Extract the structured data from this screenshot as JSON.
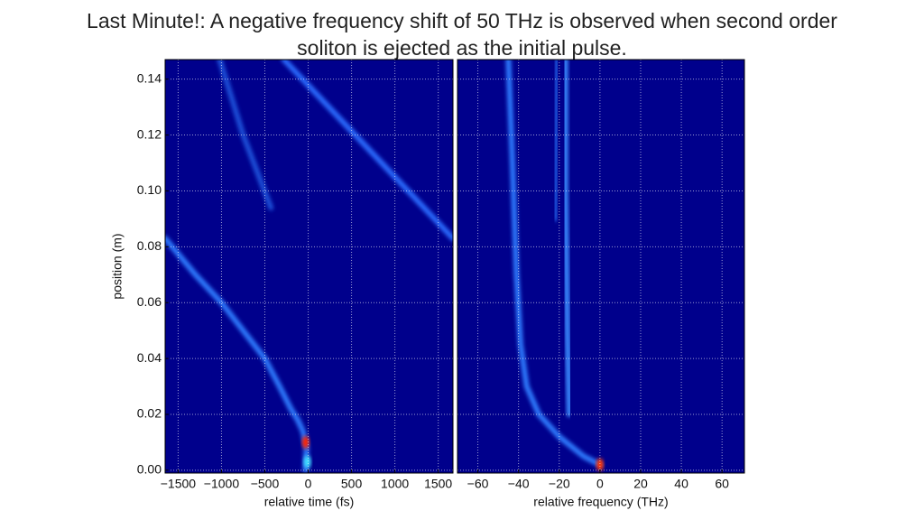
{
  "title": "Last Minute!: A negative frequency shift of 50 THz is observed when second order soliton is ejected as the initial pulse.",
  "chart_data": [
    {
      "type": "heatmap",
      "x_label": "relative time (fs)",
      "y_label": "position (m)",
      "xlim": [
        -1650,
        1670
      ],
      "ylim": [
        -0.001,
        0.147
      ],
      "xticks": [
        {
          "value": -1500,
          "label": "−1500"
        },
        {
          "value": -1000,
          "label": "−1000"
        },
        {
          "value": -500,
          "label": "−500"
        },
        0,
        500,
        1000,
        1500
      ],
      "yticks": [
        {
          "value": 0,
          "label": "0.00"
        },
        0.02,
        0.04,
        0.06,
        0.08,
        {
          "value": 0.1,
          "label": "0.10"
        },
        0.12,
        0.14
      ],
      "grid": true,
      "background": "#00008c",
      "series": [
        {
          "color": "#2f7bff",
          "x": [
            -30,
            -20,
            -60,
            -120,
            -200,
            -330,
            -500,
            -750,
            -1000,
            -1300,
            -1650
          ],
          "y": [
            0.0,
            0.008,
            0.014,
            0.018,
            0.022,
            0.03,
            0.04,
            0.05,
            0.06,
            0.07,
            0.083
          ]
        },
        {
          "color": "#1b4fd8",
          "x": [
            -1020,
            -750,
            -430
          ],
          "y": [
            0.147,
            0.12,
            0.094
          ]
        },
        {
          "color": "#2a6cff",
          "x": [
            -280,
            1670
          ],
          "y": [
            0.147,
            0.083
          ]
        },
        {
          "color": "#40e0ff",
          "x": [
            -10
          ],
          "y": [
            0.003
          ]
        },
        {
          "color": "#ff2000",
          "x": [
            -30
          ],
          "y": [
            0.01
          ]
        }
      ]
    },
    {
      "type": "heatmap",
      "x_label": "relative frequency (THz)",
      "xlim": [
        -70,
        71
      ],
      "ylim": [
        -0.001,
        0.147
      ],
      "xticks": [
        {
          "value": -60,
          "label": "−60"
        },
        {
          "value": -40,
          "label": "−40"
        },
        {
          "value": -20,
          "label": "−20"
        },
        0,
        20,
        40,
        60
      ],
      "grid": true,
      "background": "#00008c",
      "series": [
        {
          "color": "#2f7bff",
          "x": [
            0,
            -8,
            -20,
            -30,
            -36,
            -39,
            -41,
            -43,
            -45
          ],
          "y": [
            0.002,
            0.005,
            0.012,
            0.02,
            0.03,
            0.045,
            0.07,
            0.11,
            0.147
          ]
        },
        {
          "color": "#3a8cff",
          "x": [
            -15,
            -16,
            -17,
            -17
          ],
          "y": [
            0.02,
            0.05,
            0.1,
            0.147
          ]
        },
        {
          "color": "#1b4fd8",
          "x": [
            -22,
            -21
          ],
          "y": [
            0.09,
            0.147
          ]
        },
        {
          "color": "#ff3000",
          "x": [
            0
          ],
          "y": [
            0.002
          ]
        }
      ]
    }
  ]
}
